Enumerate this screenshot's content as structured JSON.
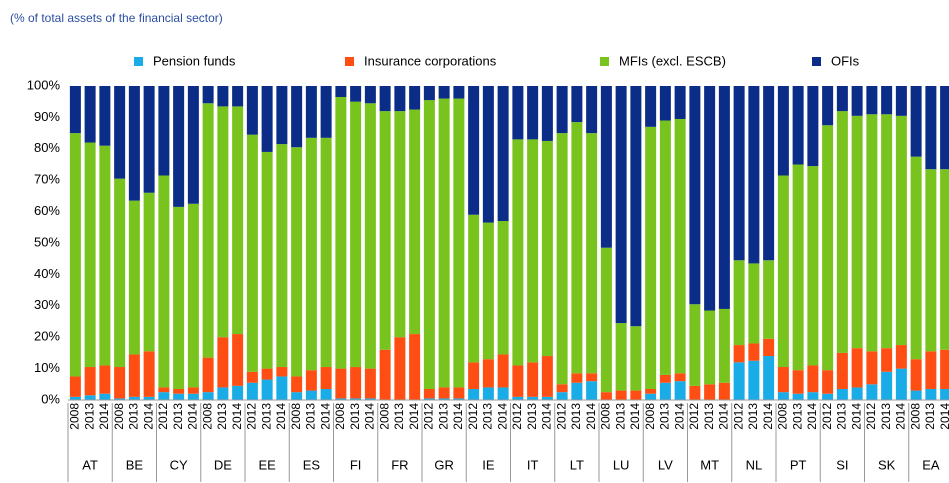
{
  "chart_data": {
    "type": "stacked-bar",
    "subtitle": "(% of total assets of the financial sector)",
    "categories": [
      "2008",
      "2013",
      "2014",
      "2008",
      "2013",
      "2014",
      "2012",
      "2013",
      "2014",
      "2008",
      "2013",
      "2014",
      "2012",
      "2013",
      "2014",
      "2008",
      "2013",
      "2014",
      "2008",
      "2013",
      "2014",
      "2008",
      "2013",
      "2014",
      "2012",
      "2013",
      "2014",
      "2012",
      "2013",
      "2014",
      "2012",
      "2013",
      "2014",
      "2012",
      "2013",
      "2014",
      "2008",
      "2013",
      "2014",
      "2008",
      "2013",
      "2014",
      "2012",
      "2013",
      "2014",
      "2012",
      "2013",
      "2014",
      "2008",
      "2013",
      "2014",
      "2012",
      "2013",
      "2014",
      "2012",
      "2013",
      "2014",
      "2008",
      "2013",
      "2014"
    ],
    "groups": [
      "AT",
      "BE",
      "CY",
      "DE",
      "EE",
      "ES",
      "FI",
      "FR",
      "GR",
      "IE",
      "IT",
      "LT",
      "LU",
      "LV",
      "MT",
      "NL",
      "PT",
      "SI",
      "SK",
      "EA"
    ],
    "series": [
      {
        "name": "Pension funds",
        "color": "#1aace6",
        "values": [
          1,
          1.5,
          2,
          0.5,
          1,
          1,
          2.5,
          2,
          2,
          2.5,
          4,
          4.5,
          5.5,
          6.5,
          7.5,
          2.5,
          3,
          3.5,
          0.5,
          0.5,
          0.5,
          0,
          0,
          0,
          0.5,
          0.5,
          0.5,
          3.5,
          4,
          4,
          1,
          1,
          1,
          2.5,
          5.5,
          6,
          0,
          0,
          0,
          2,
          5.5,
          6,
          0,
          0,
          0,
          12,
          12.5,
          14,
          2.5,
          2,
          2.5,
          2,
          3.5,
          4,
          5,
          9,
          10,
          3,
          3.5,
          3.5
        ]
      },
      {
        "name": "Insurance corporations",
        "color": "#ff4e14",
        "values": [
          6.5,
          9,
          9,
          10,
          13.5,
          14.5,
          1.5,
          1.5,
          2,
          11,
          16,
          16.5,
          3.5,
          3.5,
          3,
          5,
          6.5,
          7,
          9.5,
          10,
          9.5,
          16,
          20,
          21,
          3,
          3.5,
          3.5,
          8.5,
          9,
          10.5,
          10,
          11,
          13,
          2.5,
          3,
          2.5,
          2.5,
          3,
          3,
          1.5,
          2.5,
          2.5,
          4.5,
          5,
          5.5,
          5.5,
          5.5,
          5.5,
          8,
          7.5,
          8.5,
          7.5,
          11.5,
          12.5,
          10.5,
          7.5,
          7.5,
          10,
          12,
          12.5
        ]
      },
      {
        "name": "MFIs (excl. ESCB)",
        "color": "#79c31e",
        "values": [
          77.5,
          71.5,
          70,
          60,
          49,
          50.5,
          67.5,
          58,
          58.5,
          81,
          73.5,
          72.5,
          75.5,
          69,
          71,
          73,
          74,
          73,
          86.5,
          84.5,
          84.5,
          76,
          72,
          71.5,
          92,
          92,
          92,
          47,
          43.5,
          42.5,
          72,
          71,
          68.5,
          80,
          80,
          76.5,
          46,
          21.5,
          20.5,
          83.5,
          81,
          81,
          26,
          23.5,
          23.5,
          27,
          25.5,
          25,
          61,
          65.5,
          63.5,
          78,
          77,
          74,
          75.5,
          74.5,
          73,
          64.5,
          58,
          57.5
        ]
      },
      {
        "name": "OFIs",
        "color": "#0b2d87",
        "values": [
          15,
          18,
          19,
          29.5,
          36.5,
          34,
          28.5,
          38.5,
          37.5,
          5.5,
          6.5,
          6.5,
          15.5,
          21,
          18.5,
          19.5,
          16.5,
          16.5,
          3.5,
          5,
          5.5,
          8,
          8,
          7.5,
          4.5,
          4,
          4,
          41,
          43.5,
          43,
          17,
          17,
          17.5,
          15,
          11.5,
          15,
          51.5,
          75.5,
          76.5,
          13,
          11,
          10.5,
          69.5,
          71.5,
          71,
          55.5,
          56.5,
          55.5,
          28.5,
          25,
          25.5,
          12.5,
          8,
          9.5,
          9,
          9,
          9.5,
          22.5,
          26.5,
          26.5
        ]
      }
    ],
    "ylim": [
      0,
      100
    ],
    "yticks": [
      {
        "value": 0,
        "label": "0%"
      },
      {
        "value": 10,
        "label": "10%"
      },
      {
        "value": 20,
        "label": "20%"
      },
      {
        "value": 30,
        "label": "30%"
      },
      {
        "value": 40,
        "label": "40%"
      },
      {
        "value": 50,
        "label": "50%"
      },
      {
        "value": 60,
        "label": "60%"
      },
      {
        "value": 70,
        "label": "70%"
      },
      {
        "value": 80,
        "label": "80%"
      },
      {
        "value": 90,
        "label": "90%"
      },
      {
        "value": 100,
        "label": "100%"
      }
    ],
    "grid": false,
    "legend": "top"
  }
}
